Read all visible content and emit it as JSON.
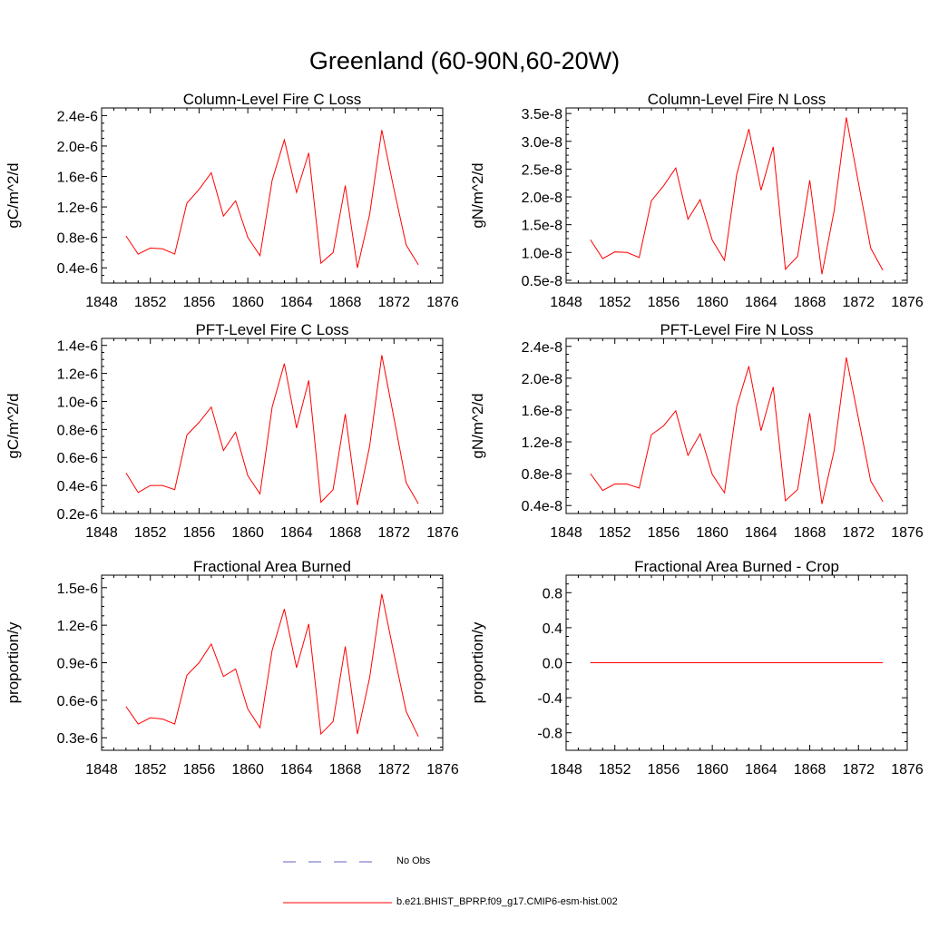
{
  "figure": {
    "title": "Greenland (60-90N,60-20W)",
    "colors": {
      "model": "#ff0000",
      "obs": "#6060c0",
      "axis": "#000000"
    }
  },
  "legend": {
    "obs_label": "No Obs",
    "model_label": "b.e21.BHIST_BPRP.f09_g17.CMIP6-esm-hist.002"
  },
  "chart_data": [
    {
      "type": "line",
      "title": "Column-Level Fire C Loss",
      "xlabel": "",
      "ylabel": "gC/m^2/d",
      "xlim": [
        1848,
        1876
      ],
      "ylim": [
        2e-07,
        2.5e-06
      ],
      "xticks": [
        1848,
        1852,
        1856,
        1860,
        1864,
        1868,
        1872,
        1876
      ],
      "xtick_labels": [
        "1848",
        "1852",
        "1856",
        "1860",
        "1864",
        "1868",
        "1872",
        "1876"
      ],
      "yticks": [
        4e-07,
        8e-07,
        1.2e-06,
        1.6e-06,
        2e-06,
        2.4e-06
      ],
      "ytick_labels": [
        "0.4e-6",
        "0.8e-6",
        "1.2e-6",
        "1.6e-6",
        "2.0e-6",
        "2.4e-6"
      ],
      "series": [
        {
          "x": [
            1850,
            1851,
            1852,
            1853,
            1854,
            1855,
            1856,
            1857,
            1858,
            1859,
            1860,
            1861,
            1862,
            1863,
            1864,
            1865,
            1866,
            1867,
            1868,
            1869,
            1870,
            1871,
            1872,
            1873,
            1874
          ],
          "y": [
            8.2e-07,
            5.8e-07,
            6.6e-07,
            6.5e-07,
            5.8e-07,
            1.25e-06,
            1.43e-06,
            1.65e-06,
            1.08e-06,
            1.28e-06,
            8e-07,
            5.6e-07,
            1.55e-06,
            2.08e-06,
            1.39e-06,
            1.91e-06,
            4.6e-07,
            6e-07,
            1.48e-06,
            4e-07,
            1.1e-06,
            2.21e-06,
            1.43e-06,
            7e-07,
            4.4e-07
          ]
        }
      ]
    },
    {
      "type": "line",
      "title": "Column-Level Fire N Loss",
      "xlabel": "",
      "ylabel": "gN/m^2/d",
      "xlim": [
        1848,
        1876
      ],
      "ylim": [
        4.5e-09,
        3.6e-08
      ],
      "xticks": [
        1848,
        1852,
        1856,
        1860,
        1864,
        1868,
        1872,
        1876
      ],
      "xtick_labels": [
        "1848",
        "1852",
        "1856",
        "1860",
        "1864",
        "1868",
        "1872",
        "1876"
      ],
      "yticks": [
        5e-09,
        1e-08,
        1.5e-08,
        2e-08,
        2.5e-08,
        3e-08,
        3.5e-08
      ],
      "ytick_labels": [
        "0.5e-8",
        "1.0e-8",
        "1.5e-8",
        "2.0e-8",
        "2.5e-8",
        "3.0e-8",
        "3.5e-8"
      ],
      "series": [
        {
          "x": [
            1850,
            1851,
            1852,
            1853,
            1854,
            1855,
            1856,
            1857,
            1858,
            1859,
            1860,
            1861,
            1862,
            1863,
            1864,
            1865,
            1866,
            1867,
            1868,
            1869,
            1870,
            1871,
            1872,
            1873,
            1874
          ],
          "y": [
            1.23e-08,
            8.9e-09,
            1.01e-08,
            1e-08,
            9.1e-09,
            1.93e-08,
            2.2e-08,
            2.52e-08,
            1.6e-08,
            1.95e-08,
            1.22e-08,
            8.6e-09,
            2.4e-08,
            3.22e-08,
            2.12e-08,
            2.9e-08,
            7e-09,
            9.3e-09,
            2.3e-08,
            6.1e-09,
            1.75e-08,
            3.43e-08,
            2.25e-08,
            1.08e-08,
            6.8e-09
          ]
        }
      ]
    },
    {
      "type": "line",
      "title": "PFT-Level Fire C Loss",
      "xlabel": "",
      "ylabel": "gC/m^2/d",
      "xlim": [
        1848,
        1876
      ],
      "ylim": [
        2e-07,
        1.45e-06
      ],
      "xticks": [
        1848,
        1852,
        1856,
        1860,
        1864,
        1868,
        1872,
        1876
      ],
      "xtick_labels": [
        "1848",
        "1852",
        "1856",
        "1860",
        "1864",
        "1868",
        "1872",
        "1876"
      ],
      "yticks": [
        2e-07,
        4e-07,
        6e-07,
        8e-07,
        1e-06,
        1.2e-06,
        1.4e-06
      ],
      "ytick_labels": [
        "0.2e-6",
        "0.4e-6",
        "0.6e-6",
        "0.8e-6",
        "1.0e-6",
        "1.2e-6",
        "1.4e-6"
      ],
      "series": [
        {
          "x": [
            1850,
            1851,
            1852,
            1853,
            1854,
            1855,
            1856,
            1857,
            1858,
            1859,
            1860,
            1861,
            1862,
            1863,
            1864,
            1865,
            1866,
            1867,
            1868,
            1869,
            1870,
            1871,
            1872,
            1873,
            1874
          ],
          "y": [
            4.9e-07,
            3.5e-07,
            4e-07,
            4e-07,
            3.7e-07,
            7.6e-07,
            8.5e-07,
            9.6e-07,
            6.5e-07,
            7.8e-07,
            4.7e-07,
            3.4e-07,
            9.6e-07,
            1.27e-06,
            8.1e-07,
            1.15e-06,
            2.8e-07,
            3.7e-07,
            9.1e-07,
            2.6e-07,
            6.8e-07,
            1.33e-06,
            8.8e-07,
            4.2e-07,
            2.7e-07
          ]
        }
      ]
    },
    {
      "type": "line",
      "title": "PFT-Level Fire N Loss",
      "xlabel": "",
      "ylabel": "gN/m^2/d",
      "xlim": [
        1848,
        1876
      ],
      "ylim": [
        3e-09,
        2.5e-08
      ],
      "xticks": [
        1848,
        1852,
        1856,
        1860,
        1864,
        1868,
        1872,
        1876
      ],
      "xtick_labels": [
        "1848",
        "1852",
        "1856",
        "1860",
        "1864",
        "1868",
        "1872",
        "1876"
      ],
      "yticks": [
        4e-09,
        8e-09,
        1.2e-08,
        1.6e-08,
        2e-08,
        2.4e-08
      ],
      "ytick_labels": [
        "0.4e-8",
        "0.8e-8",
        "1.2e-8",
        "1.6e-8",
        "2.0e-8",
        "2.4e-8"
      ],
      "series": [
        {
          "x": [
            1850,
            1851,
            1852,
            1853,
            1854,
            1855,
            1856,
            1857,
            1858,
            1859,
            1860,
            1861,
            1862,
            1863,
            1864,
            1865,
            1866,
            1867,
            1868,
            1869,
            1870,
            1871,
            1872,
            1873,
            1874
          ],
          "y": [
            8e-09,
            5.9e-09,
            6.7e-09,
            6.7e-09,
            6.2e-09,
            1.29e-08,
            1.4e-08,
            1.59e-08,
            1.03e-08,
            1.3e-08,
            7.9e-09,
            5.6e-09,
            1.64e-08,
            2.15e-08,
            1.34e-08,
            1.89e-08,
            4.6e-09,
            6e-09,
            1.56e-08,
            4.2e-09,
            1.09e-08,
            2.26e-08,
            1.49e-08,
            7.1e-09,
            4.5e-09
          ]
        }
      ]
    },
    {
      "type": "line",
      "title": "Fractional Area Burned",
      "xlabel": "",
      "ylabel": "proportion/y",
      "xlim": [
        1848,
        1876
      ],
      "ylim": [
        2e-07,
        1.6e-06
      ],
      "xticks": [
        1848,
        1852,
        1856,
        1860,
        1864,
        1868,
        1872,
        1876
      ],
      "xtick_labels": [
        "1848",
        "1852",
        "1856",
        "1860",
        "1864",
        "1868",
        "1872",
        "1876"
      ],
      "yticks": [
        3e-07,
        6e-07,
        9e-07,
        1.2e-06,
        1.5e-06
      ],
      "ytick_labels": [
        "0.3e-6",
        "0.6e-6",
        "0.9e-6",
        "1.2e-6",
        "1.5e-6"
      ],
      "series": [
        {
          "x": [
            1850,
            1851,
            1852,
            1853,
            1854,
            1855,
            1856,
            1857,
            1858,
            1859,
            1860,
            1861,
            1862,
            1863,
            1864,
            1865,
            1866,
            1867,
            1868,
            1869,
            1870,
            1871,
            1872,
            1873,
            1874
          ],
          "y": [
            5.5e-07,
            4.1e-07,
            4.6e-07,
            4.5e-07,
            4.1e-07,
            8e-07,
            9e-07,
            1.05e-06,
            7.9e-07,
            8.5e-07,
            5.3e-07,
            3.8e-07,
            1e-06,
            1.33e-06,
            8.6e-07,
            1.21e-06,
            3.3e-07,
            4.3e-07,
            1.03e-06,
            3.3e-07,
            7.8e-07,
            1.45e-06,
            9.7e-07,
            5.1e-07,
            3.1e-07
          ]
        }
      ]
    },
    {
      "type": "line",
      "title": "Fractional Area Burned - Crop",
      "xlabel": "",
      "ylabel": "proportion/y",
      "xlim": [
        1848,
        1876
      ],
      "ylim": [
        -1.0,
        1.0
      ],
      "xticks": [
        1848,
        1852,
        1856,
        1860,
        1864,
        1868,
        1872,
        1876
      ],
      "xtick_labels": [
        "1848",
        "1852",
        "1856",
        "1860",
        "1864",
        "1868",
        "1872",
        "1876"
      ],
      "yticks": [
        -0.8,
        -0.4,
        0.0,
        0.4,
        0.8
      ],
      "ytick_labels": [
        "-0.8",
        "-0.4",
        "0.0",
        "0.4",
        "0.8"
      ],
      "series": [
        {
          "x": [
            1850,
            1851,
            1852,
            1853,
            1854,
            1855,
            1856,
            1857,
            1858,
            1859,
            1860,
            1861,
            1862,
            1863,
            1864,
            1865,
            1866,
            1867,
            1868,
            1869,
            1870,
            1871,
            1872,
            1873,
            1874
          ],
          "y": [
            0,
            0,
            0,
            0,
            0,
            0,
            0,
            0,
            0,
            0,
            0,
            0,
            0,
            0,
            0,
            0,
            0,
            0,
            0,
            0,
            0,
            0,
            0,
            0,
            0
          ]
        }
      ]
    }
  ]
}
